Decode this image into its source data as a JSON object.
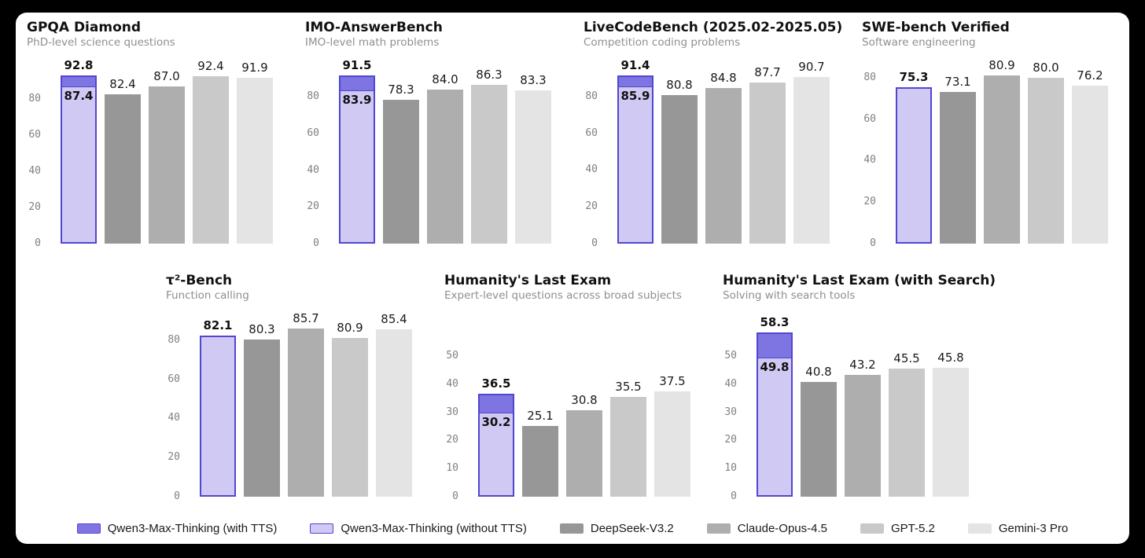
{
  "page": {
    "background": "#000000",
    "panel_background": "#ffffff"
  },
  "colors": {
    "with_tts": "#7e75e3",
    "without_tts": "#cfc9f4",
    "qwen_border": "#5246cf",
    "deepseek": "#979797",
    "claude": "#aeaeae",
    "gpt": "#c9c9c9",
    "gemini": "#e4e4e4",
    "tick_label": "#808080",
    "subtitle": "#8f8f8f",
    "title": "#111111"
  },
  "models": [
    "Qwen3-Max-Thinking",
    "DeepSeek-V3.2",
    "Claude-Opus-4.5",
    "GPT-5.2",
    "Gemini-3 Pro"
  ],
  "legend": {
    "position": "bottom-center",
    "items": [
      {
        "label": "Qwen3-Max-Thinking (with TTS)",
        "color": "with_tts",
        "border": true
      },
      {
        "label": "Qwen3-Max-Thinking (without TTS)",
        "color": "without_tts",
        "border": true
      },
      {
        "label": "DeepSeek-V3.2",
        "color": "deepseek",
        "border": false
      },
      {
        "label": "Claude-Opus-4.5",
        "color": "claude",
        "border": false
      },
      {
        "label": "GPT-5.2",
        "color": "gpt",
        "border": false
      },
      {
        "label": "Gemini-3 Pro",
        "color": "gemini",
        "border": false
      }
    ]
  },
  "chart_data": [
    {
      "type": "bar",
      "title": "GPQA Diamond",
      "subtitle": "PhD-level science questions",
      "row": "top",
      "grid": false,
      "ylim": [
        0,
        95.6
      ],
      "yticks": [
        0,
        20,
        40,
        60,
        80
      ],
      "bars": [
        {
          "model": "Qwen3-Max-Thinking",
          "stacked": true,
          "bold": true,
          "segments": [
            {
              "name": "without TTS",
              "value": 87.4
            },
            {
              "name": "with TTS total",
              "value": 92.8
            }
          ]
        },
        {
          "model": "DeepSeek-V3.2",
          "value": 82.4,
          "color": "deepseek"
        },
        {
          "model": "Claude-Opus-4.5",
          "value": 87.0,
          "color": "claude"
        },
        {
          "model": "GPT-5.2",
          "value": 92.4,
          "color": "gpt"
        },
        {
          "model": "Gemini-3 Pro",
          "value": 91.9,
          "color": "gemini"
        }
      ]
    },
    {
      "type": "bar",
      "title": "IMO-AnswerBench",
      "subtitle": "IMO-level math problems",
      "row": "top",
      "grid": false,
      "ylim": [
        0,
        94.2
      ],
      "yticks": [
        0,
        20,
        40,
        60,
        80
      ],
      "bars": [
        {
          "model": "Qwen3-Max-Thinking",
          "stacked": true,
          "bold": true,
          "segments": [
            {
              "name": "without TTS",
              "value": 83.9
            },
            {
              "name": "with TTS total",
              "value": 91.5
            }
          ]
        },
        {
          "model": "DeepSeek-V3.2",
          "value": 78.3,
          "color": "deepseek"
        },
        {
          "model": "Claude-Opus-4.5",
          "value": 84.0,
          "color": "claude"
        },
        {
          "model": "GPT-5.2",
          "value": 86.3,
          "color": "gpt"
        },
        {
          "model": "Gemini-3 Pro",
          "value": 83.3,
          "color": "gemini"
        }
      ]
    },
    {
      "type": "bar",
      "title": "LiveCodeBench (2025.02-2025.05)",
      "subtitle": "Competition coding problems",
      "row": "top",
      "grid": false,
      "ylim": [
        0,
        94.1
      ],
      "yticks": [
        0,
        20,
        40,
        60,
        80
      ],
      "bars": [
        {
          "model": "Qwen3-Max-Thinking",
          "stacked": true,
          "bold": true,
          "segments": [
            {
              "name": "without TTS",
              "value": 85.9
            },
            {
              "name": "with TTS total",
              "value": 91.4
            }
          ]
        },
        {
          "model": "DeepSeek-V3.2",
          "value": 80.8,
          "color": "deepseek"
        },
        {
          "model": "Claude-Opus-4.5",
          "value": 84.8,
          "color": "claude"
        },
        {
          "model": "GPT-5.2",
          "value": 87.7,
          "color": "gpt"
        },
        {
          "model": "Gemini-3 Pro",
          "value": 90.7,
          "color": "gemini"
        }
      ]
    },
    {
      "type": "bar",
      "title": "SWE-bench Verified",
      "subtitle": "Software engineering",
      "row": "top",
      "grid": false,
      "ylim": [
        0,
        83.3
      ],
      "yticks": [
        0,
        20,
        40,
        60,
        80
      ],
      "bars": [
        {
          "model": "Qwen3-Max-Thinking",
          "value": 75.3,
          "color": "qwen_light",
          "bold": true
        },
        {
          "model": "DeepSeek-V3.2",
          "value": 73.1,
          "color": "deepseek"
        },
        {
          "model": "Claude-Opus-4.5",
          "value": 80.9,
          "color": "claude"
        },
        {
          "model": "GPT-5.2",
          "value": 80.0,
          "color": "gpt"
        },
        {
          "model": "Gemini-3 Pro",
          "value": 76.2,
          "color": "gemini"
        }
      ]
    },
    {
      "type": "bar",
      "title": "τ²-Bench",
      "subtitle": "Function calling",
      "row": "bottom",
      "grid": false,
      "ylim": [
        0,
        88.3
      ],
      "yticks": [
        0,
        20,
        40,
        60,
        80
      ],
      "bars": [
        {
          "model": "Qwen3-Max-Thinking",
          "value": 82.1,
          "color": "qwen_light",
          "bold": true
        },
        {
          "model": "DeepSeek-V3.2",
          "value": 80.3,
          "color": "deepseek"
        },
        {
          "model": "Claude-Opus-4.5",
          "value": 85.7,
          "color": "claude"
        },
        {
          "model": "GPT-5.2",
          "value": 80.9,
          "color": "gpt"
        },
        {
          "model": "Gemini-3 Pro",
          "value": 85.4,
          "color": "gemini"
        }
      ]
    },
    {
      "type": "bar",
      "title": "Humanity's Last Exam",
      "subtitle": "Expert-level questions across broad subjects",
      "row": "bottom",
      "grid": false,
      "ylim": [
        0,
        61.4
      ],
      "yticks": [
        0,
        10,
        20,
        30,
        40,
        50
      ],
      "bars": [
        {
          "model": "Qwen3-Max-Thinking",
          "stacked": true,
          "bold": true,
          "segments": [
            {
              "name": "without TTS",
              "value": 30.2
            },
            {
              "name": "with TTS total",
              "value": 36.5
            }
          ]
        },
        {
          "model": "DeepSeek-V3.2",
          "value": 25.1,
          "color": "deepseek"
        },
        {
          "model": "Claude-Opus-4.5",
          "value": 30.8,
          "color": "claude"
        },
        {
          "model": "GPT-5.2",
          "value": 35.5,
          "color": "gpt"
        },
        {
          "model": "Gemini-3 Pro",
          "value": 37.5,
          "color": "gemini"
        }
      ]
    },
    {
      "type": "bar",
      "title": "Humanity's Last Exam (with Search)",
      "subtitle": "Solving with search tools",
      "row": "bottom",
      "grid": false,
      "ylim": [
        0,
        61.4
      ],
      "yticks": [
        0,
        10,
        20,
        30,
        40,
        50
      ],
      "bars": [
        {
          "model": "Qwen3-Max-Thinking",
          "stacked": true,
          "bold": true,
          "segments": [
            {
              "name": "without TTS",
              "value": 49.8
            },
            {
              "name": "with TTS total",
              "value": 58.3
            }
          ]
        },
        {
          "model": "DeepSeek-V3.2",
          "value": 40.8,
          "color": "deepseek"
        },
        {
          "model": "Claude-Opus-4.5",
          "value": 43.2,
          "color": "claude"
        },
        {
          "model": "GPT-5.2",
          "value": 45.5,
          "color": "gpt"
        },
        {
          "model": "Gemini-3 Pro",
          "value": 45.8,
          "color": "gemini"
        }
      ]
    }
  ]
}
